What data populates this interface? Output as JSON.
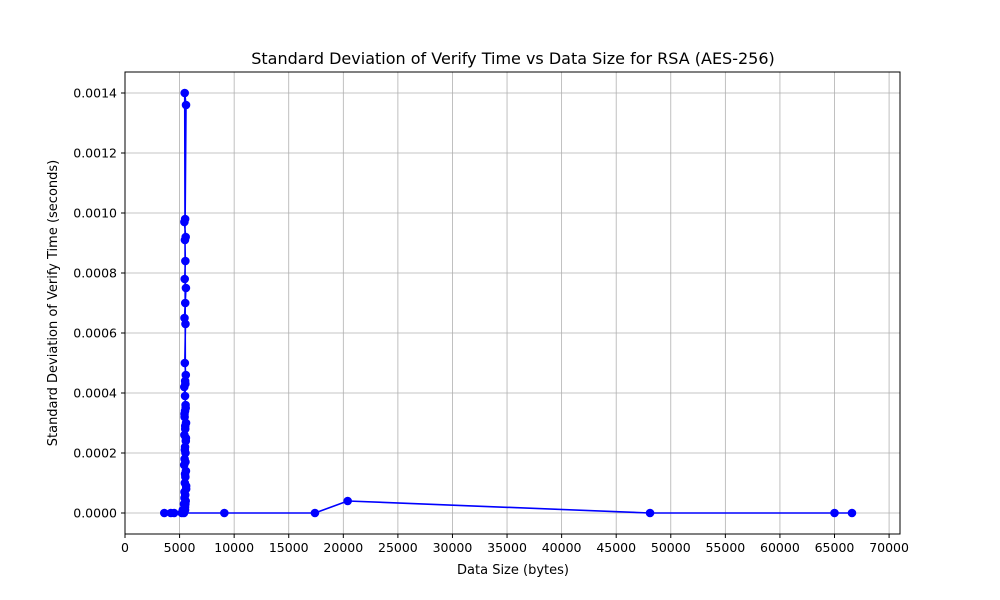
{
  "chart_data": {
    "type": "line",
    "title": "Standard Deviation of Verify Time vs Data Size for RSA (AES-256)",
    "xlabel": "Data Size (bytes)",
    "ylabel": "Standard Deviation of Verify Time (seconds)",
    "xlim": [
      0,
      71000
    ],
    "ylim": [
      -7e-05,
      0.00147
    ],
    "xticks": [
      0,
      5000,
      10000,
      15000,
      20000,
      25000,
      30000,
      35000,
      40000,
      45000,
      50000,
      55000,
      60000,
      65000,
      70000
    ],
    "xtick_labels": [
      "0",
      "5000",
      "10000",
      "15000",
      "20000",
      "25000",
      "30000",
      "35000",
      "40000",
      "45000",
      "50000",
      "55000",
      "60000",
      "65000",
      "70000"
    ],
    "yticks": [
      0,
      0.0002,
      0.0004,
      0.0006,
      0.0008,
      0.001,
      0.0012,
      0.0014
    ],
    "ytick_labels": [
      "0.0000",
      "0.0002",
      "0.0004",
      "0.0006",
      "0.0008",
      "0.0010",
      "0.0012",
      "0.0014"
    ],
    "grid": true,
    "color": "#0000ff",
    "series": [
      {
        "x": [
          3600,
          4200,
          4500,
          5200,
          5300,
          5400,
          5450,
          5500,
          5520,
          5560,
          5600,
          5480,
          5530,
          5580,
          5420,
          5460,
          5540,
          5500,
          5570,
          5440,
          5520,
          5590,
          5460,
          5500,
          5550,
          5430,
          5510,
          5570,
          5480,
          5540,
          5450,
          5520,
          5580,
          5470,
          5530,
          5490,
          5560,
          5440,
          5510,
          5590,
          5470,
          5530,
          5500,
          5560,
          5450,
          5520,
          5580,
          5480,
          5540,
          5500,
          5600,
          5450,
          5530,
          5500,
          5400,
          9100,
          17400,
          20400,
          48100,
          65000,
          66600
        ],
        "y": [
          0,
          0,
          0,
          0,
          1e-05,
          3e-05,
          5e-05,
          2e-05,
          6e-05,
          4e-05,
          8e-05,
          0.0001,
          0.00012,
          0.00014,
          0.00016,
          0.00018,
          0.0002,
          0.00022,
          0.00024,
          0.00026,
          0.00028,
          0.0003,
          0.00032,
          0.00034,
          0.00036,
          0.00042,
          0.00044,
          0.00046,
          0.0005,
          0.00063,
          0.00065,
          0.0007,
          0.00075,
          0.00078,
          0.00084,
          0.00091,
          0.00092,
          0.00097,
          0.00098,
          0.00136,
          0.0014,
          0.00043,
          0.00039,
          0.00035,
          0.00033,
          0.00029,
          0.00025,
          0.00021,
          0.00017,
          0.00013,
          9e-05,
          7e-05,
          3e-05,
          1e-05,
          0,
          0,
          0,
          4e-05,
          0,
          0,
          0
        ]
      }
    ]
  }
}
